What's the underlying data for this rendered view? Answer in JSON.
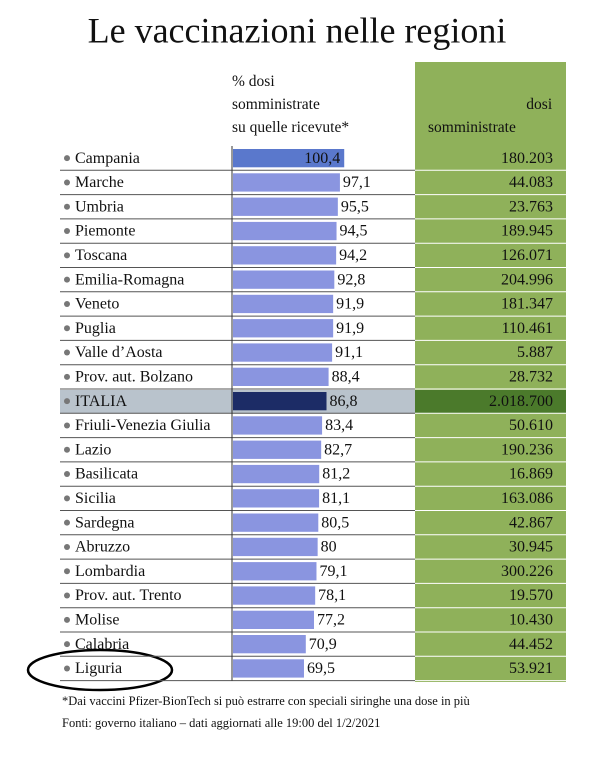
{
  "chart_data": {
    "type": "bar",
    "title": "Le vaccinazioni nelle regioni",
    "value_title": "% dosi somministrate su quelle ricevute*",
    "categories": [
      "Campania",
      "Marche",
      "Umbria",
      "Piemonte",
      "Toscana",
      "Emilia-Romagna",
      "Veneto",
      "Puglia",
      "Valle d’Aosta",
      "Prov. aut. Bolzano",
      "ITALIA",
      "Friuli-Venezia Giulia",
      "Lazio",
      "Basilicata",
      "Sicilia",
      "Sardegna",
      "Abruzzo",
      "Lombardia",
      "Prov. aut. Trento",
      "Molise",
      "Calabria",
      "Liguria"
    ],
    "values": [
      100.4,
      97.1,
      95.5,
      94.5,
      94.2,
      92.8,
      91.9,
      91.9,
      91.1,
      88.4,
      86.8,
      83.4,
      82.7,
      81.2,
      81.1,
      80.5,
      80,
      79.1,
      78.1,
      77.2,
      70.9,
      69.5
    ],
    "value_labels": [
      "100,4",
      "97,1",
      "95,5",
      "94,5",
      "94,2",
      "92,8",
      "91,9",
      "91,9",
      "91,1",
      "88,4",
      "86,8",
      "83,4",
      "82,7",
      "81,2",
      "81,1",
      "80,5",
      "80",
      "79,1",
      "78,1",
      "77,2",
      "70,9",
      "69,5"
    ],
    "bar_colors": [
      "#5a78cc",
      "#8a95e0",
      "#8a95e0",
      "#8a95e0",
      "#8a95e0",
      "#8a95e0",
      "#8a95e0",
      "#8a95e0",
      "#8a95e0",
      "#8a95e0",
      "#1c2c66",
      "#8a95e0",
      "#8a95e0",
      "#8a95e0",
      "#8a95e0",
      "#8a95e0",
      "#8a95e0",
      "#8a95e0",
      "#8a95e0",
      "#8a95e0",
      "#8a95e0",
      "#8a95e0"
    ],
    "xlim": [
      15,
      101
    ],
    "table_column": {
      "title": "dosi somministrate",
      "values": [
        180203,
        44083,
        23763,
        189945,
        126071,
        204996,
        181347,
        110461,
        5887,
        28732,
        2018700,
        50610,
        190236,
        16869,
        163086,
        42867,
        30945,
        300226,
        19570,
        10430,
        44452,
        53921
      ],
      "value_labels": [
        "180.203",
        "44.083",
        "23.763",
        "189.945",
        "126.071",
        "204.996",
        "181.347",
        "110.461",
        "5.887",
        "28.732",
        "2.018.700",
        "50.610",
        "190.236",
        "16.869",
        "163.086",
        "42.867",
        "30.945",
        "300.226",
        "19.570",
        "10.430",
        "44.452",
        "53.921"
      ],
      "cell_colors": [
        "#8fb15a",
        "#8fb15a",
        "#8fb15a",
        "#8fb15a",
        "#8fb15a",
        "#8fb15a",
        "#8fb15a",
        "#8fb15a",
        "#8fb15a",
        "#8fb15a",
        "#4b7a2b",
        "#8fb15a",
        "#8fb15a",
        "#8fb15a",
        "#8fb15a",
        "#8fb15a",
        "#8fb15a",
        "#8fb15a",
        "#8fb15a",
        "#8fb15a",
        "#8fb15a",
        "#8fb15a"
      ]
    },
    "notes": [
      "*Dai vaccini Pfizer-BionTech si può estrarre con speciali siringhe una dose in più",
      "Fonti: governo italiano – dati aggiornati alle 19:00 del 1/2/2021"
    ]
  }
}
